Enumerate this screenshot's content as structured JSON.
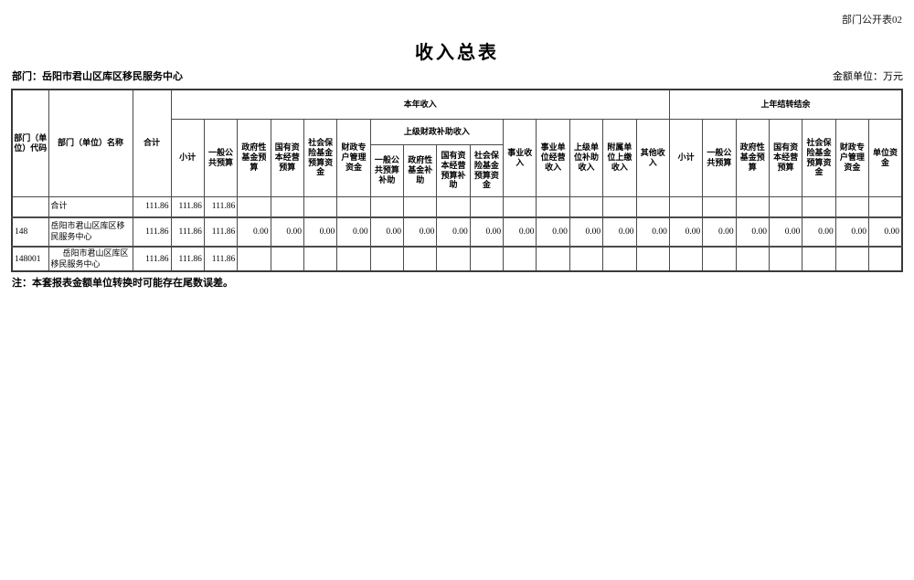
{
  "page": {
    "doc_label": "部门公开表02",
    "title": "收入总表",
    "department": "部门：岳阳市君山区库区移民服务中心",
    "amount_unit": "金额单位：万元",
    "note": "注：本套报表金额单位转换时可能存在尾数误差。"
  },
  "table": {
    "header": {
      "code": "部门（单位）代码",
      "name": "部门（单位）名称",
      "total": "合计",
      "current_year_income": "本年收入",
      "prev_year_carryover": "上年结转结余",
      "subtotal": "小计",
      "general_public_budget": "一般公共预算",
      "gov_fund_budget": "政府性基金预算",
      "state_capital_budget": "国有资本经营预算",
      "social_insurance_fund_budget": "社会保险基金预算资金",
      "fiscal_account_funds": "财政专户管理资金",
      "higher_subsidy_group": "上级财政补助收入",
      "general_public_budget_subsidy": "一般公共预算补助",
      "gov_fund_subsidy": "政府性基金补助",
      "state_capital_budget_subsidy": "国有资本经营预算补助",
      "social_insurance_fund_subsidy": "社会保险基金预算资金",
      "business_income": "事业收入",
      "business_operating_income": "事业单位经营收入",
      "higher_unit_subsidy_income": "上级单位补助收入",
      "affiliated_unit_remit_income": "附属单位上缴收入",
      "other_income": "其他收入",
      "unit_funds": "单位资金"
    },
    "rows": [
      {
        "code": "",
        "name": "合计",
        "indent": false,
        "values": [
          "111.86",
          "111.86",
          "111.86",
          "",
          "",
          "",
          "",
          "",
          "",
          "",
          "",
          "",
          "",
          "",
          "",
          "",
          "",
          "",
          "",
          "",
          "",
          "",
          ""
        ]
      },
      {
        "code": "148",
        "name": "岳阳市君山区库区移民服务中心",
        "indent": false,
        "values": [
          "111.86",
          "111.86",
          "111.86",
          "0.00",
          "0.00",
          "0.00",
          "0.00",
          "0.00",
          "0.00",
          "0.00",
          "0.00",
          "0.00",
          "0.00",
          "0.00",
          "0.00",
          "0.00",
          "0.00",
          "0.00",
          "0.00",
          "0.00",
          "0.00",
          "0.00",
          "0.00"
        ]
      },
      {
        "code": "148001",
        "name": "岳阳市君山区库区移民服务中心",
        "indent": true,
        "values": [
          "111.86",
          "111.86",
          "111.86",
          "",
          "",
          "",
          "",
          "",
          "",
          "",
          "",
          "",
          "",
          "",
          "",
          "",
          "",
          "",
          "",
          "",
          "",
          "",
          ""
        ]
      }
    ]
  }
}
